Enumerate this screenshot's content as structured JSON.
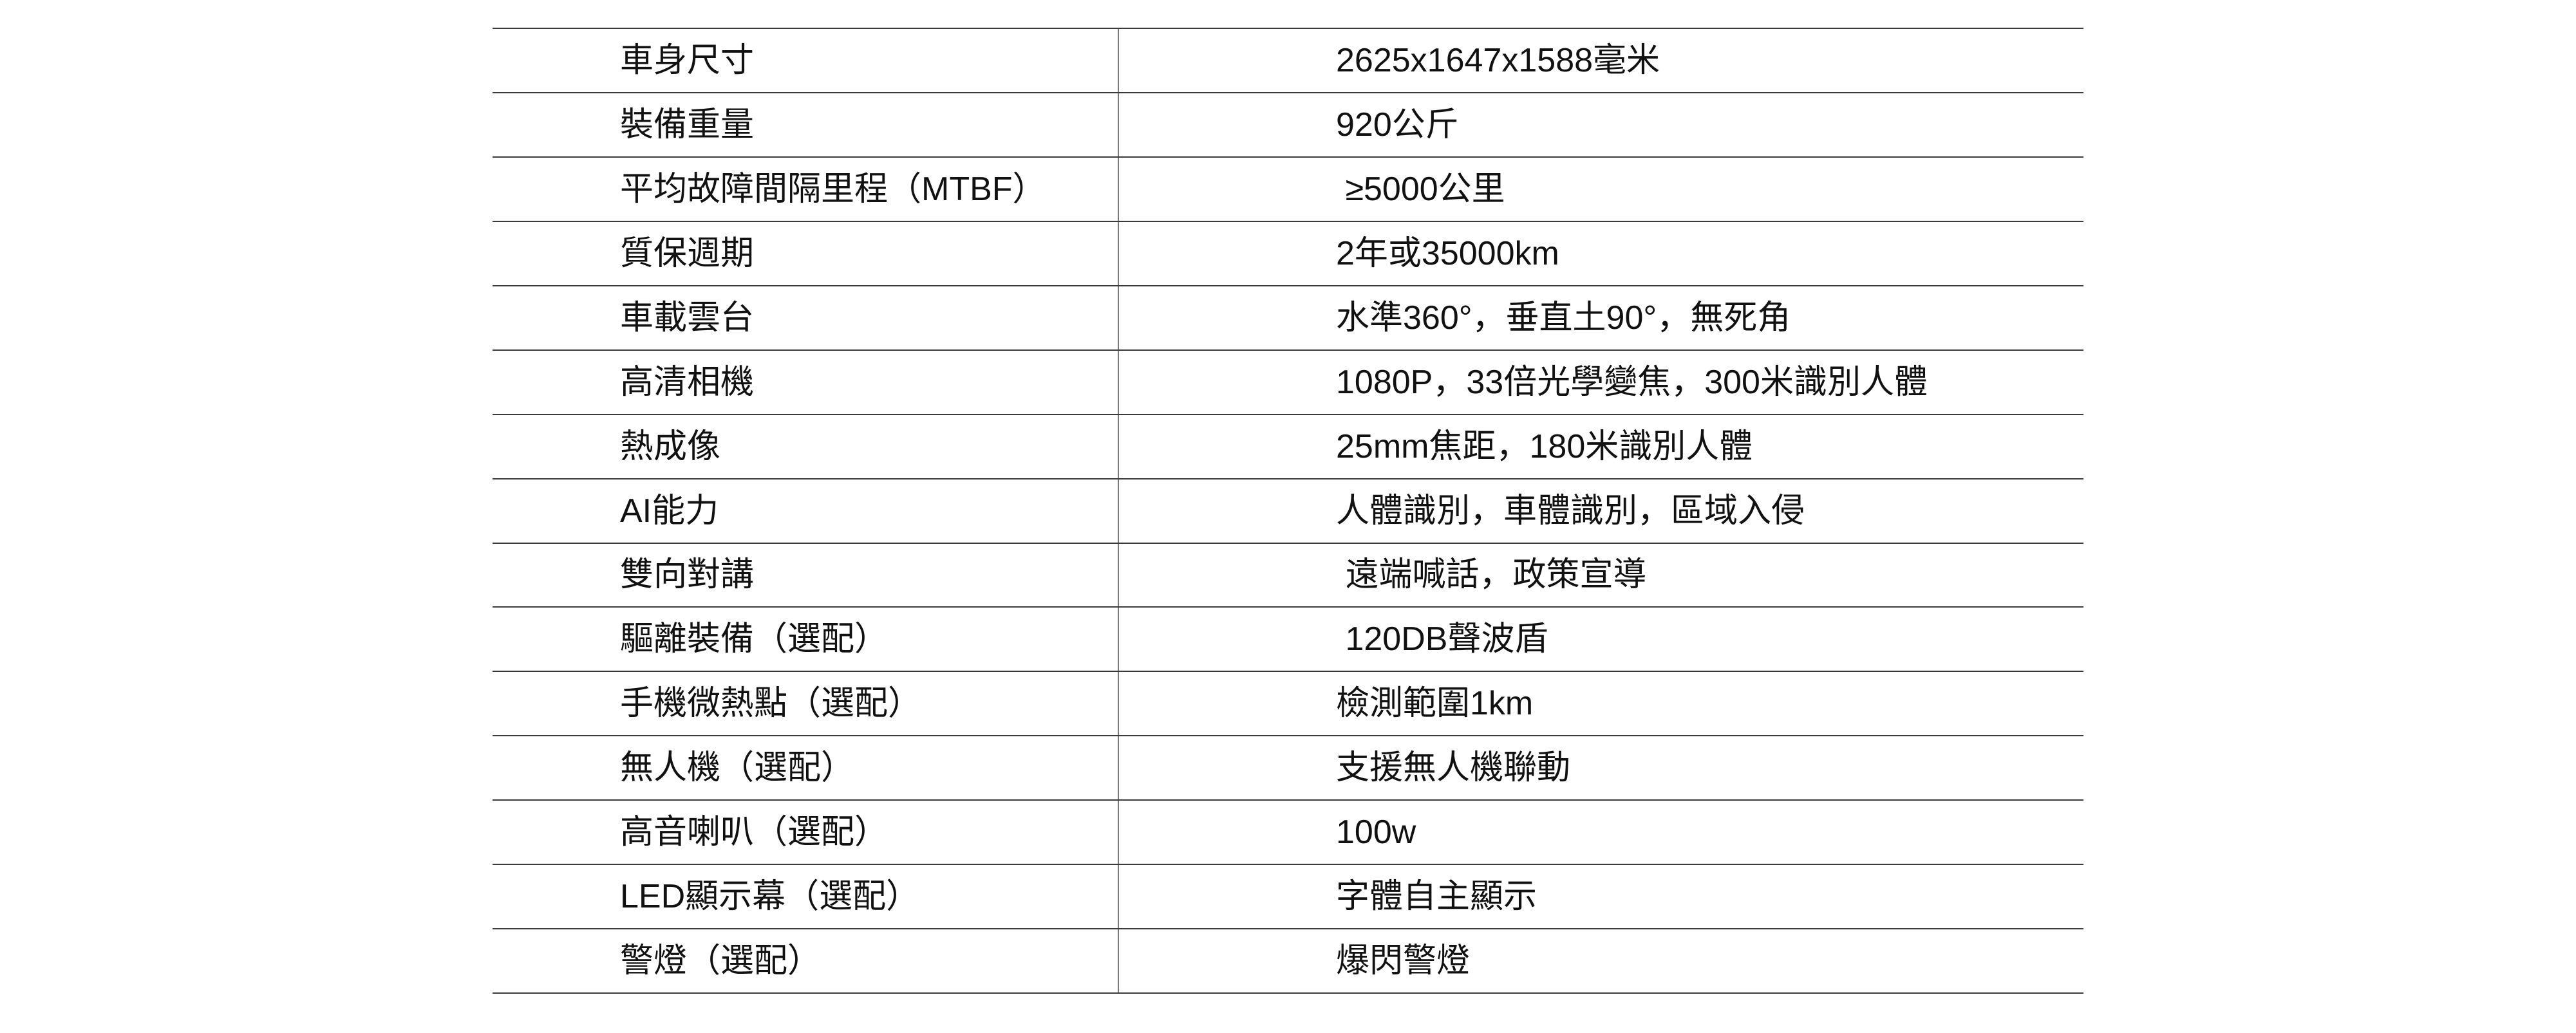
{
  "colors": {
    "background": "#ffffff",
    "text": "#111111",
    "row_line": "#3a3a3a",
    "column_divider": "#7a7a7a"
  },
  "table": {
    "rows": [
      {
        "label": "車身尺寸",
        "value": "2625x1647x1588毫米"
      },
      {
        "label": "裝備重量",
        "value": "920公斤"
      },
      {
        "label": "平均故障間隔里程（MTBF）",
        "value": " ≥5000公里"
      },
      {
        "label": "質保週期",
        "value": "2年或35000km"
      },
      {
        "label": "車載雲台",
        "value": "水準360°，垂直土90°，無死角"
      },
      {
        "label": "高清相機",
        "value": "1080P，33倍光學變焦，300米識別人體"
      },
      {
        "label": "熱成像",
        "value": "25mm焦距，180米識別人體"
      },
      {
        "label": "AI能力",
        "value": "人體識別，車體識別，區域入侵"
      },
      {
        "label": "雙向對講",
        "value": " 遠端喊話，政策宣導"
      },
      {
        "label": "驅離裝備（選配）",
        "value": " 120DB聲波盾"
      },
      {
        "label": "手機微熱點（選配）",
        "value": "檢測範圍1km"
      },
      {
        "label": "無人機（選配）",
        "value": "支援無人機聯動"
      },
      {
        "label": "高音喇叭（選配）",
        "value": "100w"
      },
      {
        "label": "LED顯示幕（選配）",
        "value": "字體自主顯示"
      },
      {
        "label": "警燈（選配）",
        "value": "爆閃警燈"
      }
    ]
  }
}
